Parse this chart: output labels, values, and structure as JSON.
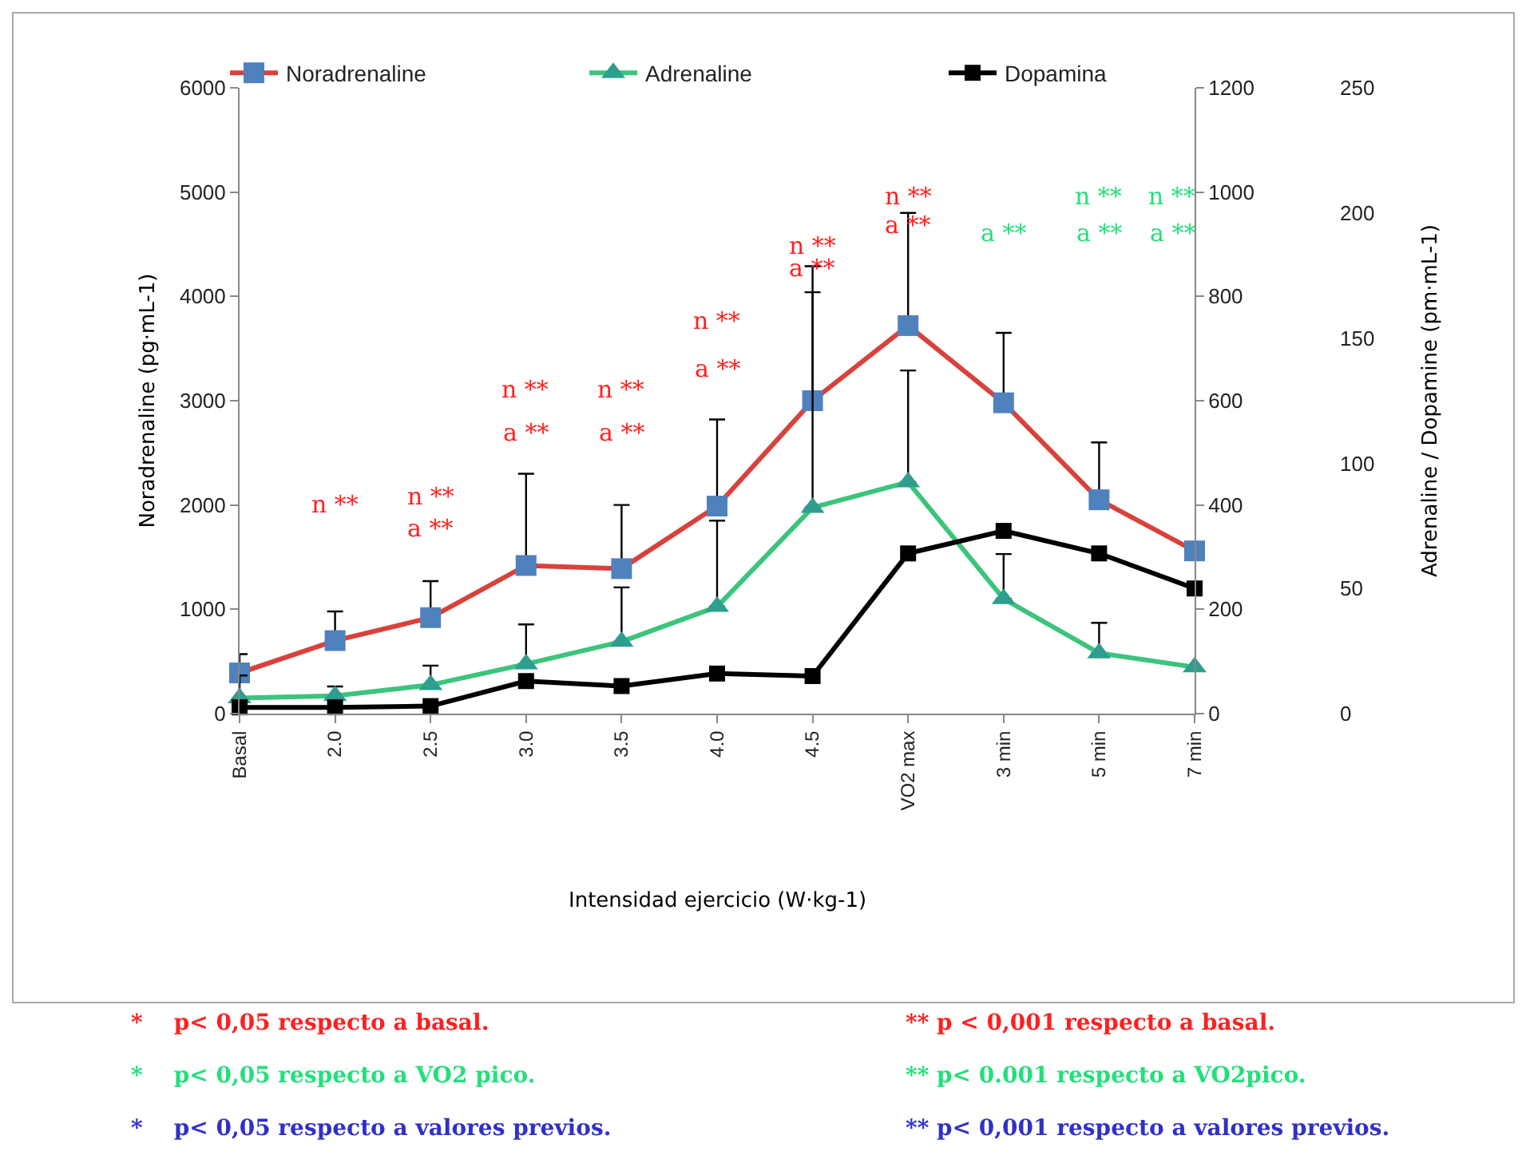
{
  "chart_data": {
    "type": "line",
    "categories": [
      "Basal",
      "2.0",
      "2.5",
      "3.0",
      "3.5",
      "4.0",
      "4.5",
      "VO2 max",
      "3 min",
      "5 min",
      "7 min"
    ],
    "xlabel": "Intensidad ejercicio (W·kg-1)",
    "ylabel": "Noradrenaline (pg·mL-1)",
    "y3label": "Adrenaline / Dopamine (pm·mL-1)",
    "ylim": [
      0,
      6000
    ],
    "yticks": [
      0,
      1000,
      2000,
      3000,
      4000,
      5000,
      6000
    ],
    "y2lim": [
      0,
      1200
    ],
    "y2ticks": [
      0,
      200,
      400,
      600,
      800,
      1000,
      1200
    ],
    "y3lim": [
      0,
      250
    ],
    "y3ticks": [
      0,
      50,
      100,
      150,
      200,
      250
    ],
    "legend": "top",
    "line_style": "solid",
    "series": [
      {
        "name": "Noradrenaline",
        "color": "#d9413c",
        "marker": "square",
        "values": [
          390,
          700,
          920,
          1420,
          1390,
          1990,
          3000,
          3720,
          2980,
          2050,
          1560
        ],
        "errors": [
          [
            390,
            570
          ],
          [
            700,
            980
          ],
          [
            920,
            1270
          ],
          [
            1420,
            2300
          ],
          [
            1390,
            2000
          ],
          [
            1990,
            2820
          ],
          [
            3000,
            4290
          ],
          [
            3720,
            4800
          ],
          [
            2980,
            3650
          ],
          [
            2050,
            2600
          ],
          null
        ]
      },
      {
        "name": "Adrenaline",
        "color": "#3cc47c",
        "marker": "triangle",
        "axis": "y2",
        "values": [
          30,
          34,
          55,
          95,
          138,
          205,
          395,
          444,
          220,
          116,
          89
        ],
        "errors": [
          [
            30,
            73
          ],
          [
            34,
            52
          ],
          [
            55,
            92
          ],
          [
            95,
            171
          ],
          [
            138,
            242
          ],
          [
            205,
            370
          ],
          [
            395,
            808
          ],
          [
            444,
            658
          ],
          [
            220,
            306
          ],
          [
            116,
            174
          ],
          null
        ]
      },
      {
        "name": "Dopamina",
        "color": "#000000",
        "marker": "square",
        "axis": "y3",
        "values": [
          2.5,
          2.5,
          3,
          13,
          11,
          16,
          15,
          64,
          73,
          64,
          50
        ]
      }
    ],
    "annotations": [
      "n **",
      "n **",
      "a **",
      "n **",
      "a **",
      "n **",
      "a **",
      "n **",
      "a **",
      "n **",
      "a **",
      "n **",
      "a **",
      "a **",
      "n **",
      "a **",
      "n **",
      "a **",
      "*    p< 0,05 respecto a basal.",
      "** p < 0,001 respecto a basal.",
      "*    p< 0,05 respecto a VO2 pico.",
      "** p< 0.001 respecto a VO2pico.",
      "*    p< 0,05 respecto a valores previos.",
      "** p< 0,001 respecto a valores previos."
    ]
  }
}
